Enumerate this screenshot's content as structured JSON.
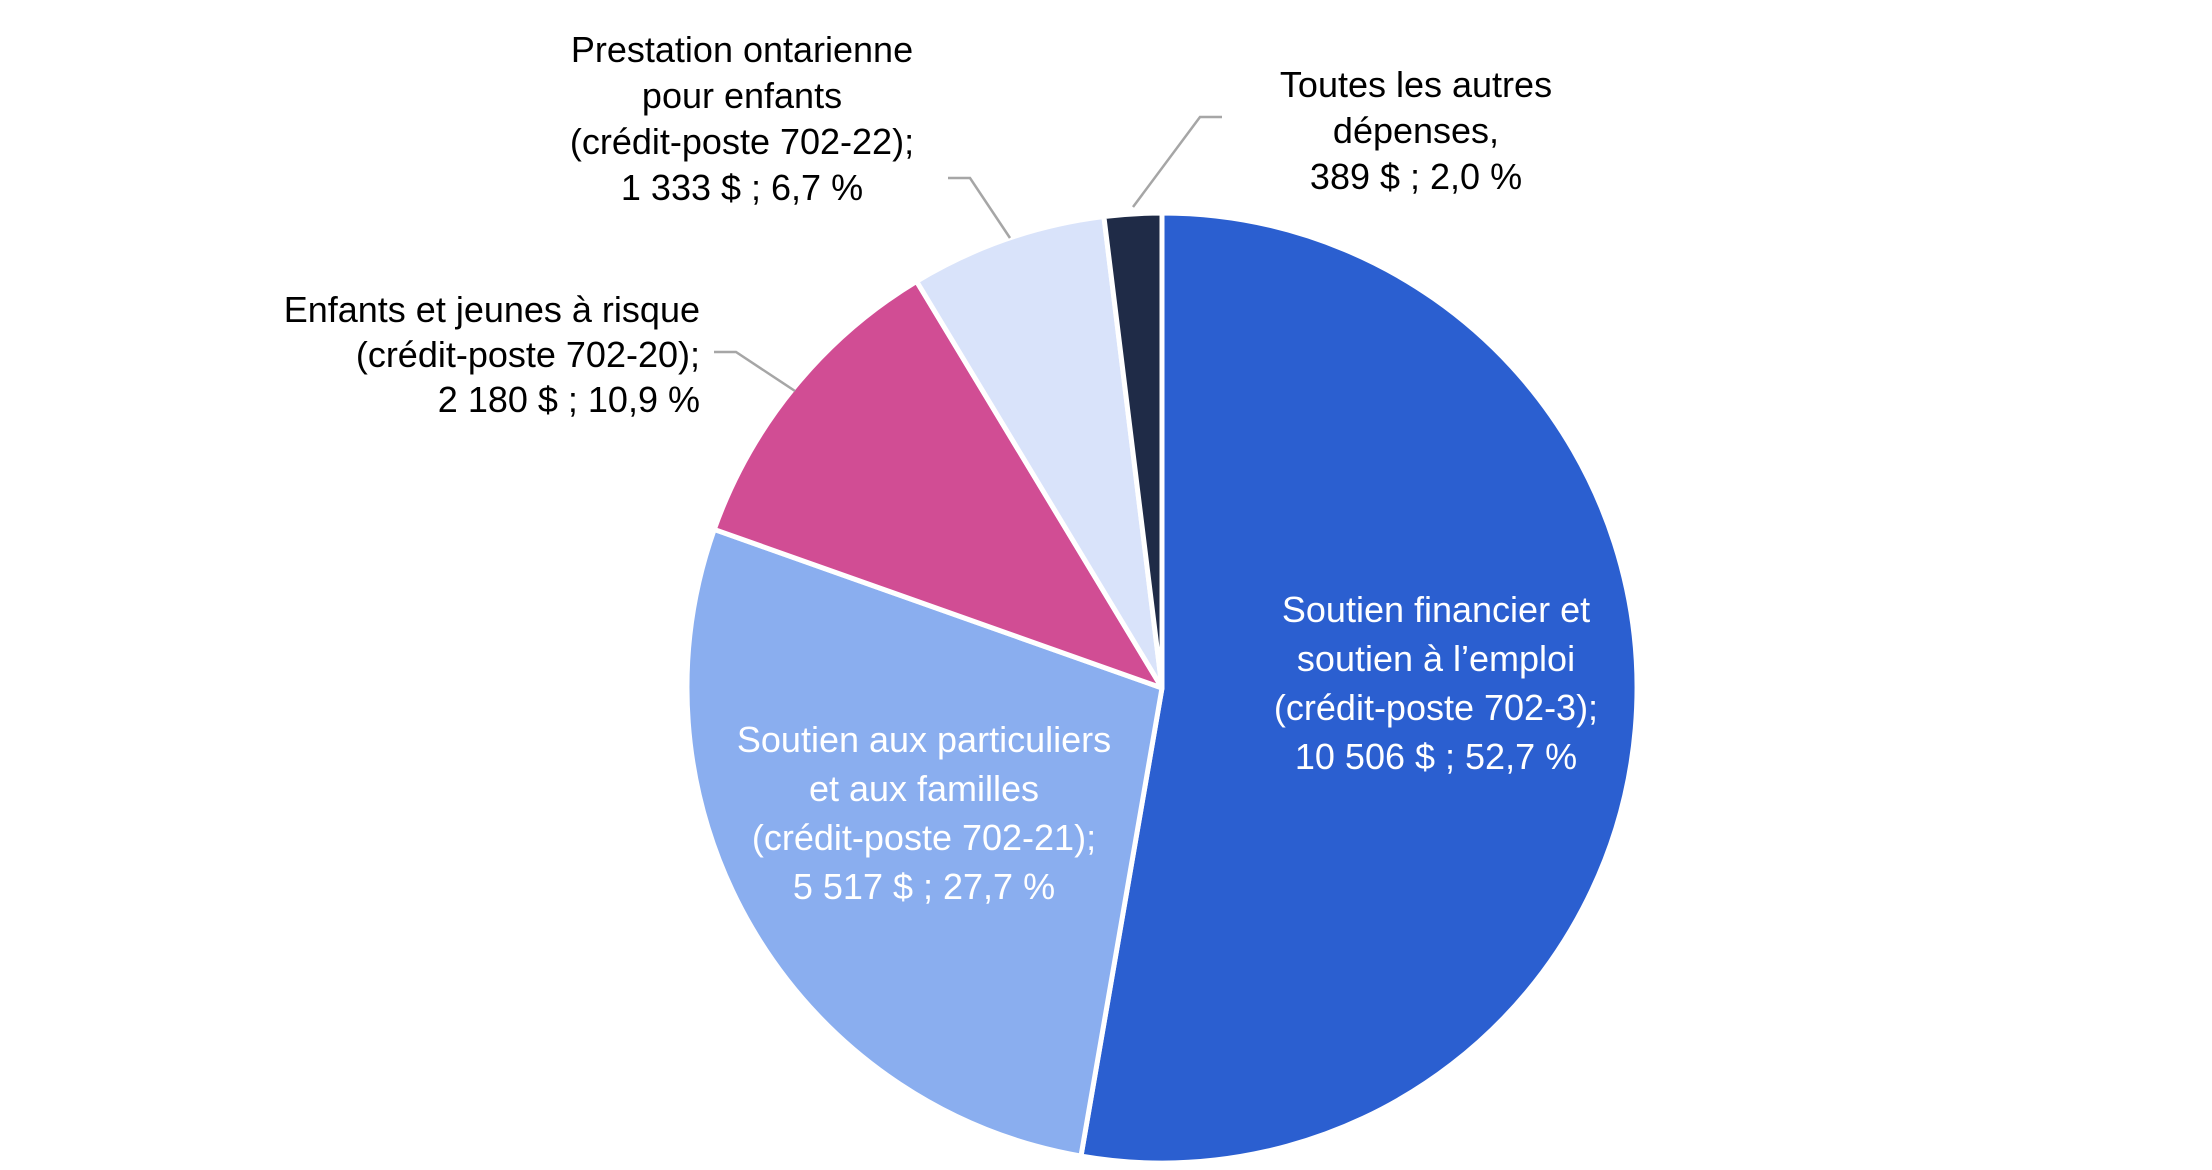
{
  "chart_data": {
    "type": "pie",
    "start_angle_deg": 0,
    "direction": "clockwise",
    "slices": [
      {
        "name": "Soutien financier et soutien à l’emploi (crédit-poste 702-3)",
        "value": 10506,
        "percent": 52.7,
        "color": "#2b5fd0",
        "label_lines": [
          "Soutien financier et",
          "soutien à l’emploi",
          "(crédit-poste 702-3);",
          "10 506 $ ; 52,7 %"
        ],
        "label_position": "inside"
      },
      {
        "name": "Soutien aux particuliers et aux familles (crédit-poste 702-21)",
        "value": 5517,
        "percent": 27.7,
        "color": "#8aaeef",
        "label_lines": [
          "Soutien aux particuliers",
          "et aux familles",
          "(crédit-poste 702-21);",
          "5 517 $ ; 27,7 %"
        ],
        "label_position": "inside"
      },
      {
        "name": "Enfants et jeunes à risque (crédit-poste 702-20)",
        "value": 2180,
        "percent": 10.9,
        "color": "#d14d94",
        "label_lines": [
          "Enfants et jeunes à risque",
          "(crédit-poste 702-20);",
          "2 180 $ ; 10,9 %"
        ],
        "label_position": "outside-left"
      },
      {
        "name": "Prestation ontarienne pour enfants (crédit-poste 702-22)",
        "value": 1333,
        "percent": 6.7,
        "color": "#d9e3fa",
        "label_lines": [
          "Prestation ontarienne",
          "pour enfants",
          "(crédit-poste 702-22);",
          "1 333 $ ; 6,7 %"
        ],
        "label_position": "outside-top-left"
      },
      {
        "name": "Toutes les autres dépenses",
        "value": 389,
        "percent": 2.0,
        "color": "#1f2b47",
        "label_lines": [
          "Toutes les autres",
          "dépenses,",
          "389 $ ; 2,0 %"
        ],
        "label_position": "outside-top-right"
      }
    ]
  }
}
